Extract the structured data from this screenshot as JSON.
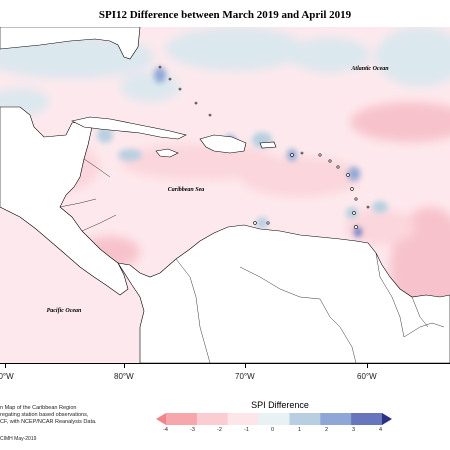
{
  "title": "SPI12 Difference between March 2019 and April 2019",
  "map": {
    "labels": {
      "atlantic": "Atlantic Ocean",
      "caribbean": "Caribbean Sea",
      "pacific": "Pacific Ocean"
    },
    "longitude_ticks": [
      "80°W",
      "80°W",
      "70°W",
      "60°W"
    ]
  },
  "notes": {
    "line1": "n Map of the Caribbean Region",
    "line2": "regating station based observations,",
    "line3": "CF, with NCEP/NCAR Reanalysis Data.",
    "credit": "CIMH May-2019"
  },
  "legend": {
    "title": "SPI Difference",
    "ticks": [
      "-4",
      "-3",
      "-2",
      "-1",
      "0",
      "1",
      "2",
      "3",
      "4"
    ],
    "colors": [
      "#f2838a",
      "#f7a6ad",
      "#fbcdd3",
      "#fde6ea",
      "#e8f1f4",
      "#b7cfe0",
      "#8fa7d6",
      "#6877bd",
      "#2c3182"
    ]
  }
}
